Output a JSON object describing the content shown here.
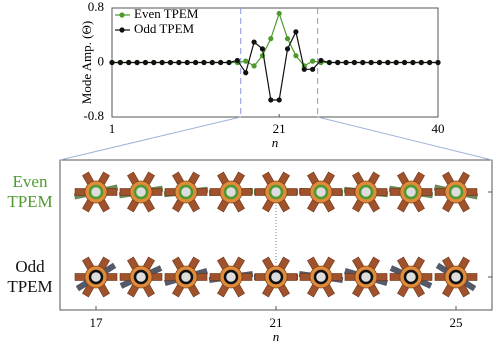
{
  "chart_data": [
    {
      "type": "line",
      "ylabel": "Mode Amp. (Θ)",
      "xlabel": "n",
      "xlim": [
        1,
        40
      ],
      "ylim": [
        -0.8,
        0.8
      ],
      "xticks": [
        1,
        21,
        40
      ],
      "yticks": [
        -0.8,
        0,
        0.8
      ],
      "highlight": [
        16.4,
        25.6
      ],
      "x": [
        1,
        2,
        3,
        4,
        5,
        6,
        7,
        8,
        9,
        10,
        11,
        12,
        13,
        14,
        15,
        16,
        17,
        18,
        19,
        20,
        21,
        22,
        23,
        24,
        25,
        26,
        27,
        28,
        29,
        30,
        31,
        32,
        33,
        34,
        35,
        36,
        37,
        38,
        39,
        40
      ],
      "series": [
        {
          "name": "Even TPEM",
          "color": "#4e9a2e",
          "values": [
            0,
            0,
            0,
            0,
            0,
            0,
            0,
            0,
            0,
            0,
            0,
            0,
            0,
            0,
            0,
            0,
            0.02,
            -0.05,
            0.1,
            0.35,
            0.72,
            0.35,
            0.1,
            -0.05,
            0.02,
            0,
            0,
            0,
            0,
            0,
            0,
            0,
            0,
            0,
            0,
            0,
            0,
            0,
            0,
            0
          ]
        },
        {
          "name": "Odd TPEM",
          "color": "#111111",
          "values": [
            0,
            0,
            0,
            0,
            0,
            0,
            0,
            0,
            0,
            0,
            0,
            0,
            0,
            0,
            0,
            0.03,
            -0.15,
            0.3,
            0.2,
            -0.55,
            -0.55,
            0.2,
            0.45,
            -0.1,
            -0.1,
            0.03,
            0,
            0,
            0,
            0,
            0,
            0,
            0,
            0,
            0,
            0,
            0,
            0,
            0,
            0
          ]
        }
      ]
    },
    {
      "type": "schematic",
      "xlabel": "n",
      "xlim": [
        16.2,
        25.8
      ],
      "xticks": [
        17,
        21,
        25
      ],
      "rows": [
        {
          "label": "Even TPEM",
          "color": "#4e9a2e"
        },
        {
          "label": "Odd TPEM",
          "color": "#111111"
        }
      ]
    }
  ]
}
